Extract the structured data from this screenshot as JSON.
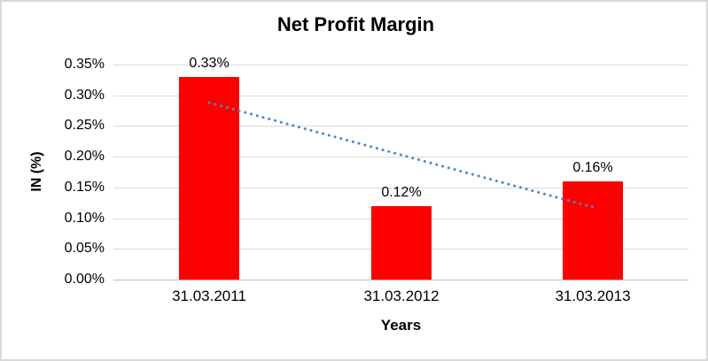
{
  "chart": {
    "title": "Net Profit Margin",
    "y_axis_title": "IN (%)",
    "x_axis_title": "Years"
  },
  "chart_data": {
    "type": "bar",
    "title": "Net Profit Margin",
    "xlabel": "Years",
    "ylabel": "IN (%)",
    "categories": [
      "31.03.2011",
      "31.03.2012",
      "31.03.2013"
    ],
    "values": [
      0.33,
      0.12,
      0.16
    ],
    "data_labels": [
      "0.33%",
      "0.12%",
      "0.16%"
    ],
    "y_ticks": [
      "0.35%",
      "0.30%",
      "0.25%",
      "0.20%",
      "0.15%",
      "0.10%",
      "0.05%",
      "0.00%"
    ],
    "y_tick_values": [
      0.35,
      0.3,
      0.25,
      0.2,
      0.15,
      0.1,
      0.05,
      0.0
    ],
    "ylim": [
      0,
      0.35
    ],
    "grid": true,
    "legend": "none",
    "bar_color": "#ff0000",
    "gridline_color": "#d9d9d9",
    "trendline": {
      "type": "linear",
      "style": "dotted",
      "color": "#4a87c8",
      "start_value": 0.288,
      "end_value": 0.118
    }
  }
}
